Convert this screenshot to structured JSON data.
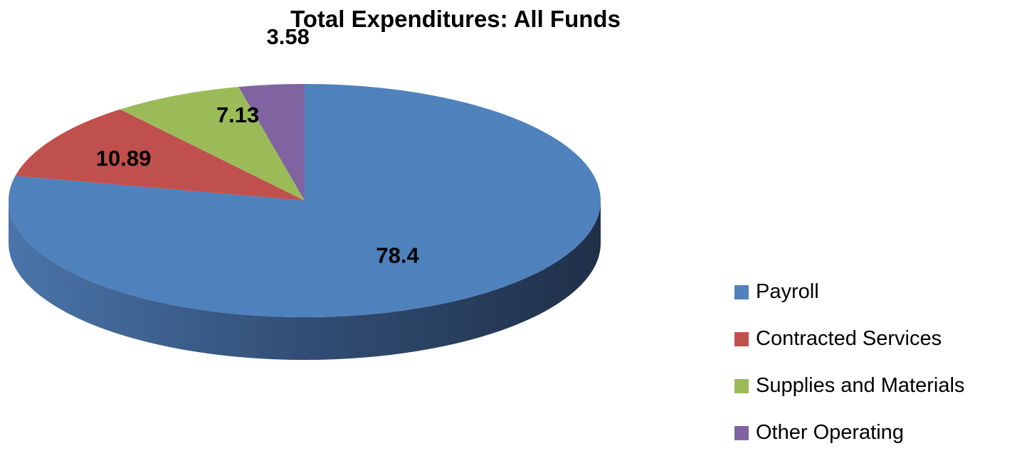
{
  "chart_data": {
    "type": "pie",
    "title": "Total Expenditures: All Funds",
    "categories": [
      "Payroll",
      "Contracted Services",
      "Supplies and Materials",
      "Other Operating"
    ],
    "values": [
      78.4,
      10.89,
      7.13,
      3.58
    ],
    "value_labels": [
      "78.4",
      "10.89",
      "7.13",
      "3.58"
    ],
    "colors": [
      "#4f81bd",
      "#c0504d",
      "#9bbb59",
      "#8064a2"
    ],
    "style": "3d",
    "legend": "right"
  }
}
